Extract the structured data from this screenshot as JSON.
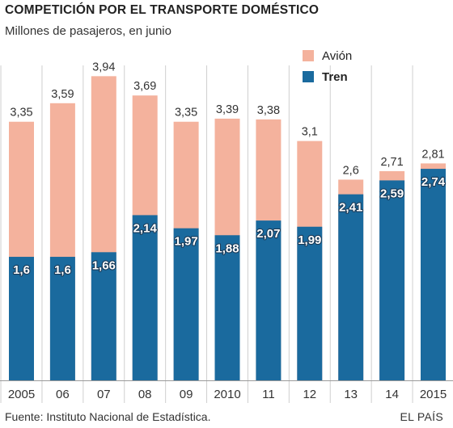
{
  "header": {
    "title": "COMPETICIÓN POR EL TRANSPORTE DOMÉSTICO",
    "subtitle": "Millones de pasajeros, en junio"
  },
  "legend": {
    "avion_label": "Avión",
    "tren_label": "Tren"
  },
  "footer": {
    "source": "Fuente: Instituto Nacional de Estadística.",
    "brand": "EL PAÍS"
  },
  "colors": {
    "avion": "#f4b29d",
    "tren": "#1a6a9e",
    "gridline": "#cfcfcf"
  },
  "chart_data": {
    "type": "bar",
    "title": "COMPETICIÓN POR EL TRANSPORTE DOMÉSTICO",
    "subtitle": "Millones de pasajeros, en junio",
    "categories": [
      "2005",
      "06",
      "07",
      "08",
      "09",
      "2010",
      "11",
      "12",
      "13",
      "14",
      "2015"
    ],
    "series": [
      {
        "name": "Avión",
        "values": [
          3.35,
          3.59,
          3.94,
          3.69,
          3.35,
          3.39,
          3.38,
          3.1,
          2.6,
          2.71,
          2.81
        ],
        "labels": [
          "3,35",
          "3,59",
          "3,94",
          "3,69",
          "3,35",
          "3,39",
          "3,38",
          "3,1",
          "2,6",
          "2,71",
          "2,81"
        ]
      },
      {
        "name": "Tren",
        "values": [
          1.6,
          1.6,
          1.66,
          2.14,
          1.97,
          1.88,
          2.07,
          1.99,
          2.41,
          2.59,
          2.74
        ],
        "labels": [
          "1,6",
          "1,6",
          "1,66",
          "2,14",
          "1,97",
          "1,88",
          "2,07",
          "1,99",
          "2,41",
          "2,59",
          "2,74"
        ]
      }
    ],
    "ylim": [
      0,
      4.1
    ],
    "grid": false,
    "legend": "top-right",
    "xlabel": "",
    "ylabel": ""
  }
}
